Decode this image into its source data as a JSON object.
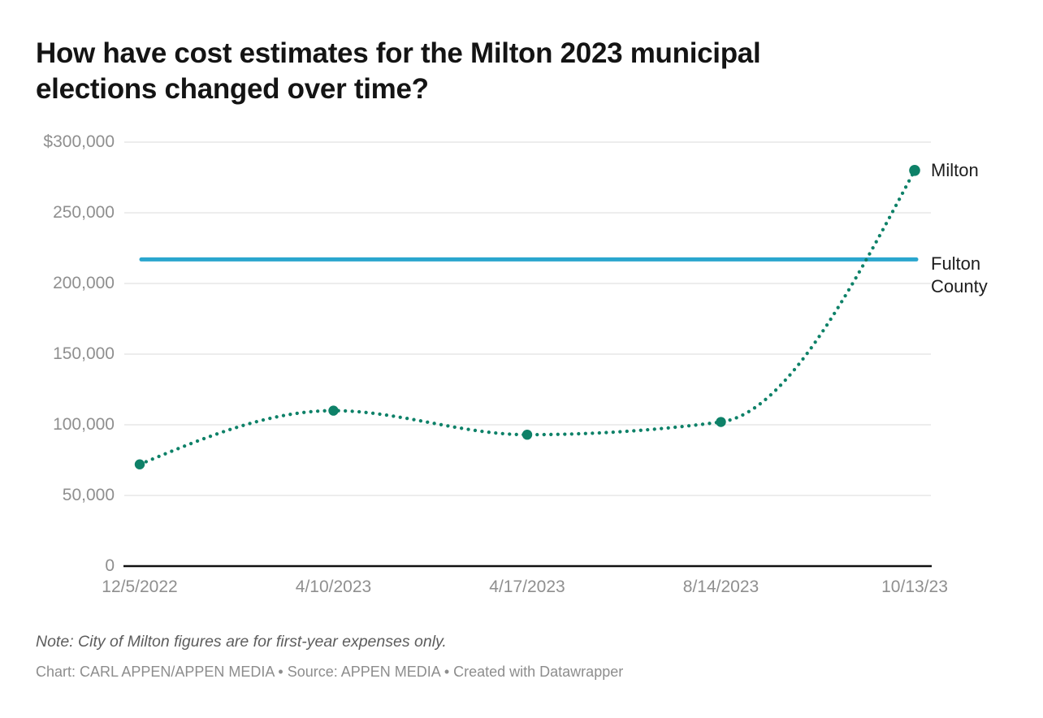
{
  "header": {
    "title": "How have cost estimates for the Milton 2023 municipal elections changed over time?",
    "title_lines": [
      "How have cost estimates for the Milton 2023 municipal",
      "elections changed over time?"
    ]
  },
  "chart_data": {
    "type": "line",
    "title": "How have cost estimates for the Milton 2023 municipal elections changed over time?",
    "categories": [
      "12/5/2022",
      "4/10/2023",
      "4/17/2023",
      "8/14/2023",
      "10/13/23"
    ],
    "series": [
      {
        "name": "Milton",
        "values": [
          72000,
          110000,
          93000,
          102000,
          280000
        ],
        "color": "#0e8168",
        "line_style": "dotted",
        "curve": "monotone",
        "markers": true
      },
      {
        "name": "Fulton County",
        "values": [
          217000,
          217000,
          217000,
          217000,
          217000
        ],
        "color": "#2aa6ce",
        "line_style": "solid",
        "curve": "straight",
        "markers": false
      }
    ],
    "y_ticks": [
      300000,
      250000,
      200000,
      150000,
      100000,
      50000,
      0
    ],
    "y_tick_labels": [
      "$300,000",
      "250,000",
      "200,000",
      "150,000",
      "100,000",
      "50,000",
      "0"
    ],
    "ylim": [
      0,
      300000
    ],
    "xlabel": "",
    "ylabel": "",
    "grid": "horizontal",
    "legend_position": "right-of-line-ends"
  },
  "labels": {
    "milton": "Milton",
    "fulton_county": "Fulton County"
  },
  "footer": {
    "note": "Note: City of Milton figures are for first-year expenses only.",
    "byline": "Chart: CARL APPEN/APPEN MEDIA • Source: APPEN MEDIA • Created with Datawrapper"
  },
  "colors": {
    "milton": "#0e8168",
    "fulton_county": "#2aa6ce",
    "gridline": "#e2e2e2",
    "baseline": "#111111",
    "axis_text": "#8f8f8f",
    "title_text": "#141414",
    "series_label_text": "#1d1d1d",
    "note_text": "#5d5d5d",
    "byline_text": "#8d8d8d",
    "background": "#ffffff"
  }
}
